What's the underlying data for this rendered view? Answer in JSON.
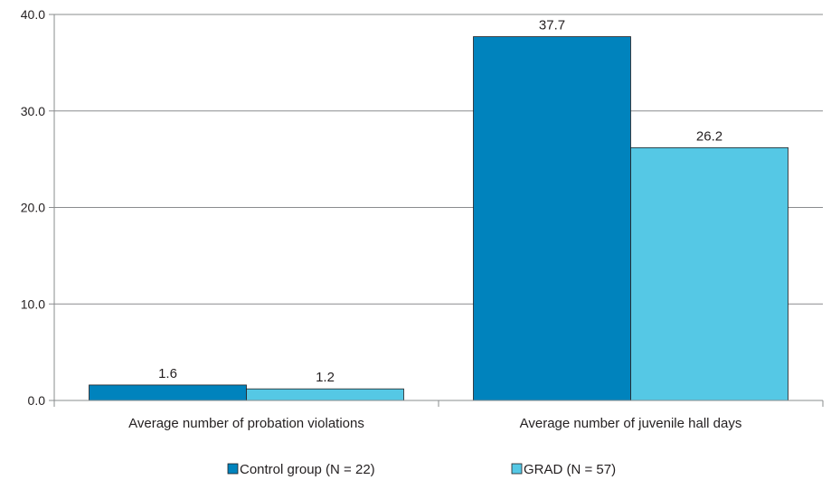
{
  "chart_data": {
    "type": "bar",
    "title": "",
    "xlabel": "",
    "ylabel": "",
    "categories": [
      "Average number of probation violations",
      "Average number of juvenile hall days"
    ],
    "series": [
      {
        "name": "Control group (N = 22)",
        "color": "#0083bd",
        "values": [
          1.6,
          37.7
        ],
        "labels": [
          "1.6",
          "37.7"
        ]
      },
      {
        "name": "GRAD (N = 57)",
        "color": "#55c8e5",
        "values": [
          1.2,
          26.2
        ],
        "labels": [
          "1.2",
          "26.2"
        ]
      }
    ],
    "ylim": [
      0,
      40
    ],
    "yticks": [
      "0.0",
      "10.0",
      "20.0",
      "30.0",
      "40.0"
    ],
    "grid": true,
    "legend": "bottom-center"
  }
}
